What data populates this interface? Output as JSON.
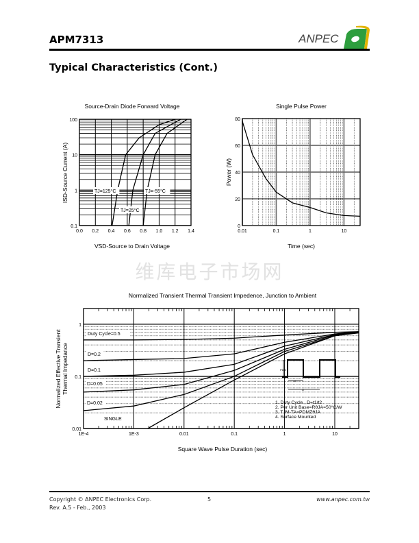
{
  "header": {
    "part_number": "APM7313",
    "logo_text": "ANPEC",
    "section_title": "Typical Characteristics (Cont.)"
  },
  "watermark": "维库电子市场网",
  "footer": {
    "copyright": "Copyright © ANPEC Electronics Corp.",
    "revision": "Rev. A.5 - Feb., 2003",
    "page": "5",
    "url": "www.anpec.com.tw"
  },
  "colors": {
    "logo_green": "#2e9e3e",
    "logo_yellow": "#e3b400",
    "text": "#000000"
  },
  "chart_data": [
    {
      "type": "line",
      "title": "Source-Drain Diode Forward Voltage",
      "xlabel": "VSD-Source to Drain Voltage",
      "ylabel": "ISD-Source Current (A)",
      "xscale": "linear",
      "yscale": "log",
      "xlim": [
        0,
        1.4
      ],
      "ylim": [
        0.1,
        100
      ],
      "xticks": [
        "0.0",
        "0.2",
        "0.4",
        "0.6",
        "0.8",
        "1.0",
        "1.2",
        "1.4"
      ],
      "yticks": [
        "0.1",
        "1",
        "10",
        "100"
      ],
      "series": [
        {
          "name": "TJ=125°C",
          "x": [
            0.41,
            0.48,
            0.58,
            0.75,
            1.0,
            1.2
          ],
          "y": [
            0.1,
            1,
            10,
            30,
            70,
            100
          ]
        },
        {
          "name": "TJ=25°C",
          "x": [
            0.62,
            0.67,
            0.8,
            0.95,
            1.27
          ],
          "y": [
            0.1,
            1,
            10,
            40,
            100
          ]
        },
        {
          "name": "TJ=-55°C",
          "x": [
            0.8,
            0.85,
            0.95,
            1.1,
            1.35
          ],
          "y": [
            0.1,
            1,
            10,
            40,
            100
          ]
        }
      ]
    },
    {
      "type": "line",
      "title": "Single Pulse Power",
      "xlabel": "Time (sec)",
      "ylabel": "Power (W)",
      "xscale": "log",
      "yscale": "linear",
      "xlim": [
        0.01,
        30
      ],
      "ylim": [
        0,
        80
      ],
      "xticks": [
        "0.01",
        "0.1",
        "1",
        "10"
      ],
      "yticks": [
        "0",
        "20",
        "40",
        "60",
        "80"
      ],
      "series": [
        {
          "name": "Power",
          "x": [
            0.01,
            0.02,
            0.05,
            0.1,
            0.3,
            1,
            3,
            10,
            30
          ],
          "y": [
            78,
            53,
            35,
            25,
            17,
            13.5,
            9.5,
            7.5,
            7
          ]
        }
      ]
    },
    {
      "type": "line",
      "title": "Normalized Transient Thermal Transient Impedence, Junction to Ambient",
      "xlabel": "Square Wave Pulse Duration (sec)",
      "ylabel": [
        "Normalized Effective Transient",
        "Thermal Impedance"
      ],
      "xscale": "log",
      "yscale": "log",
      "xlim": [
        0.0001,
        30
      ],
      "ylim": [
        0.01,
        2
      ],
      "xticks": [
        "1E-4",
        "1E-3",
        "0.01",
        "0.1",
        "1",
        "10"
      ],
      "yticks": [
        "0.01",
        "0.1",
        "1"
      ],
      "series": [
        {
          "name": "Duty Cycle=0.5",
          "x": [
            0.0001,
            0.001,
            0.01,
            0.1,
            1,
            10,
            30
          ],
          "y": [
            0.5,
            0.5,
            0.51,
            0.54,
            0.62,
            0.7,
            0.72
          ]
        },
        {
          "name": "D=0.2",
          "x": [
            0.0001,
            0.001,
            0.01,
            0.1,
            1,
            10,
            30
          ],
          "y": [
            0.2,
            0.21,
            0.22,
            0.27,
            0.45,
            0.65,
            0.72
          ]
        },
        {
          "name": "D=0.1",
          "x": [
            0.0001,
            0.001,
            0.01,
            0.1,
            1,
            10,
            30
          ],
          "y": [
            0.1,
            0.105,
            0.12,
            0.17,
            0.38,
            0.63,
            0.71
          ]
        },
        {
          "name": "D=0.05",
          "x": [
            0.0001,
            0.001,
            0.01,
            0.1,
            1,
            10,
            30
          ],
          "y": [
            0.05,
            0.055,
            0.07,
            0.13,
            0.33,
            0.62,
            0.7
          ]
        },
        {
          "name": "D=0.02",
          "x": [
            0.0001,
            0.001,
            0.01,
            0.1,
            1,
            10,
            30
          ],
          "y": [
            0.022,
            0.027,
            0.045,
            0.1,
            0.3,
            0.6,
            0.7
          ]
        },
        {
          "name": "SINGLE",
          "x": [
            0.0019,
            0.01,
            0.1,
            1,
            10,
            30
          ],
          "y": [
            0.01,
            0.025,
            0.085,
            0.27,
            0.6,
            0.68
          ]
        }
      ],
      "inset": {
        "pdm_label": "PDM",
        "t1_label": "t1",
        "t2_label": "t2"
      },
      "notes": [
        "1. Duty Cycle , D=t1/t2",
        "2. Per Unit Base=RθJA=50°C/W",
        "3. TJM-TA=PDMZθJA",
        "4. Surface Mounted"
      ]
    }
  ]
}
